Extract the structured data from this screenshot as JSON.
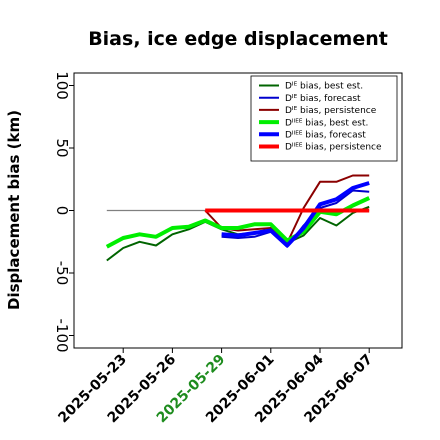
{
  "chart_data": {
    "type": "line",
    "title": "Bias, ice edge displacement",
    "xlabel": "",
    "ylabel": "Displacement bias (km)",
    "ylim": [
      -110,
      110
    ],
    "yticks": [
      -100,
      -50,
      0,
      50,
      100
    ],
    "xlim": [
      "2025-05-20",
      "2025-06-09"
    ],
    "xticks": [
      "2025-05-23",
      "2025-05-26",
      "2025-05-29",
      "2025-06-01",
      "2025-06-04",
      "2025-06-07"
    ],
    "xtick_colors": [
      "#000000",
      "#000000",
      "#1e8c1e",
      "#000000",
      "#000000",
      "#000000"
    ],
    "grid": false,
    "legend_position": "top-right",
    "zero_line": {
      "x": [
        "2025-05-22",
        "2025-06-07"
      ],
      "y": [
        0,
        0
      ],
      "color": "#808080"
    },
    "series": [
      {
        "name": "Dᴵᴱ bias, best est.",
        "color": "#006400",
        "width": 2,
        "x": [
          "2025-05-22",
          "2025-05-23",
          "2025-05-24",
          "2025-05-25",
          "2025-05-26",
          "2025-05-27",
          "2025-05-28",
          "2025-05-29",
          "2025-05-30",
          "2025-05-31",
          "2025-06-01",
          "2025-06-02",
          "2025-06-03",
          "2025-06-04",
          "2025-06-05",
          "2025-06-06",
          "2025-06-07"
        ],
        "y": [
          -40,
          -30,
          -25,
          -28,
          -19,
          -15,
          -9,
          -15,
          -19,
          -18,
          -16,
          -26,
          -20,
          -6,
          -12,
          -2,
          3
        ]
      },
      {
        "name": "Dᴵᴱ bias, forecast",
        "color": "#0000cd",
        "width": 2,
        "x": [
          "2025-05-29",
          "2025-05-30",
          "2025-05-31",
          "2025-06-01",
          "2025-06-02",
          "2025-06-03",
          "2025-06-04",
          "2025-06-05",
          "2025-06-06",
          "2025-06-07"
        ],
        "y": [
          -21,
          -22,
          -21,
          -17,
          -29,
          -12,
          2,
          6,
          16,
          15
        ]
      },
      {
        "name": "Dᴵᴱ bias, persistence",
        "color": "#8b0000",
        "width": 2,
        "x": [
          "2025-05-28",
          "2025-05-29",
          "2025-05-30",
          "2025-05-31",
          "2025-06-01",
          "2025-06-02",
          "2025-06-03",
          "2025-06-04",
          "2025-06-05",
          "2025-06-06",
          "2025-06-07"
        ],
        "y": [
          0,
          -14,
          -16,
          -15,
          -14,
          -26,
          2,
          23,
          23,
          28,
          28
        ]
      },
      {
        "name": "Dᴵᴵᴱᴱ bias, best est.",
        "color": "#00ee00",
        "width": 4,
        "x": [
          "2025-05-22",
          "2025-05-23",
          "2025-05-24",
          "2025-05-25",
          "2025-05-26",
          "2025-05-27",
          "2025-05-28",
          "2025-05-29",
          "2025-05-30",
          "2025-05-31",
          "2025-06-01",
          "2025-06-02",
          "2025-06-03",
          "2025-06-04",
          "2025-06-05",
          "2025-06-06",
          "2025-06-07"
        ],
        "y": [
          -29,
          -22,
          -19,
          -21,
          -14,
          -13,
          -8,
          -14,
          -14,
          -11,
          -11,
          -24,
          -17,
          -1,
          -3,
          4,
          10
        ]
      },
      {
        "name": "Dᴵᴵᴱᴱ bias, forecast",
        "color": "#0000ff",
        "width": 4,
        "x": [
          "2025-05-29",
          "2025-05-30",
          "2025-05-31",
          "2025-06-01",
          "2025-06-02",
          "2025-06-03",
          "2025-06-04",
          "2025-06-05",
          "2025-06-06",
          "2025-06-07"
        ],
        "y": [
          -19,
          -20,
          -18,
          -16,
          -28,
          -14,
          5,
          9,
          18,
          22
        ]
      },
      {
        "name": "Dᴵᴵᴱᴱ bias, persistence",
        "color": "#ff0000",
        "width": 4,
        "x": [
          "2025-05-28",
          "2025-05-29",
          "2025-05-30",
          "2025-05-31",
          "2025-06-01",
          "2025-06-02",
          "2025-06-03",
          "2025-06-04",
          "2025-06-05",
          "2025-06-06",
          "2025-06-07"
        ],
        "y": [
          0,
          0,
          0,
          0,
          0,
          0,
          0,
          0,
          0,
          0,
          0
        ]
      }
    ]
  }
}
